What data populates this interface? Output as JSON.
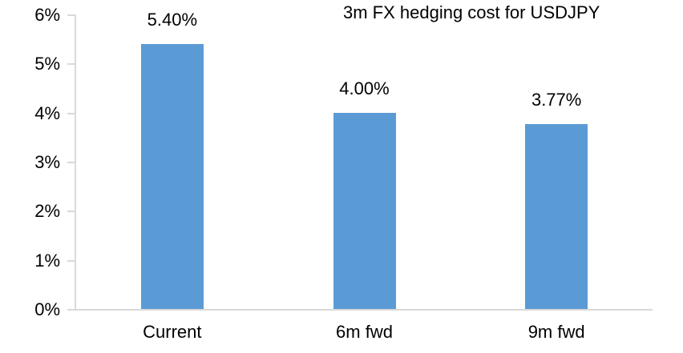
{
  "chart_data": {
    "type": "bar",
    "title": "3m FX hedging cost for USDJPY",
    "categories": [
      "Current",
      "6m fwd",
      "9m fwd"
    ],
    "values": [
      5.4,
      4.0,
      3.77
    ],
    "data_labels": [
      "5.40%",
      "4.00%",
      "3.77%"
    ],
    "xlabel": "",
    "ylabel": "",
    "ylim": [
      0,
      6
    ],
    "yticks": [
      0,
      1,
      2,
      3,
      4,
      5,
      6
    ],
    "ytick_labels": [
      "0%",
      "1%",
      "2%",
      "3%",
      "4%",
      "5%",
      "6%"
    ],
    "grid": false,
    "legend_position": "none",
    "colors": {
      "bar": "#5B9BD5",
      "axis": "#D9D9D9",
      "text": "#000000",
      "background": "#FFFFFF"
    }
  }
}
